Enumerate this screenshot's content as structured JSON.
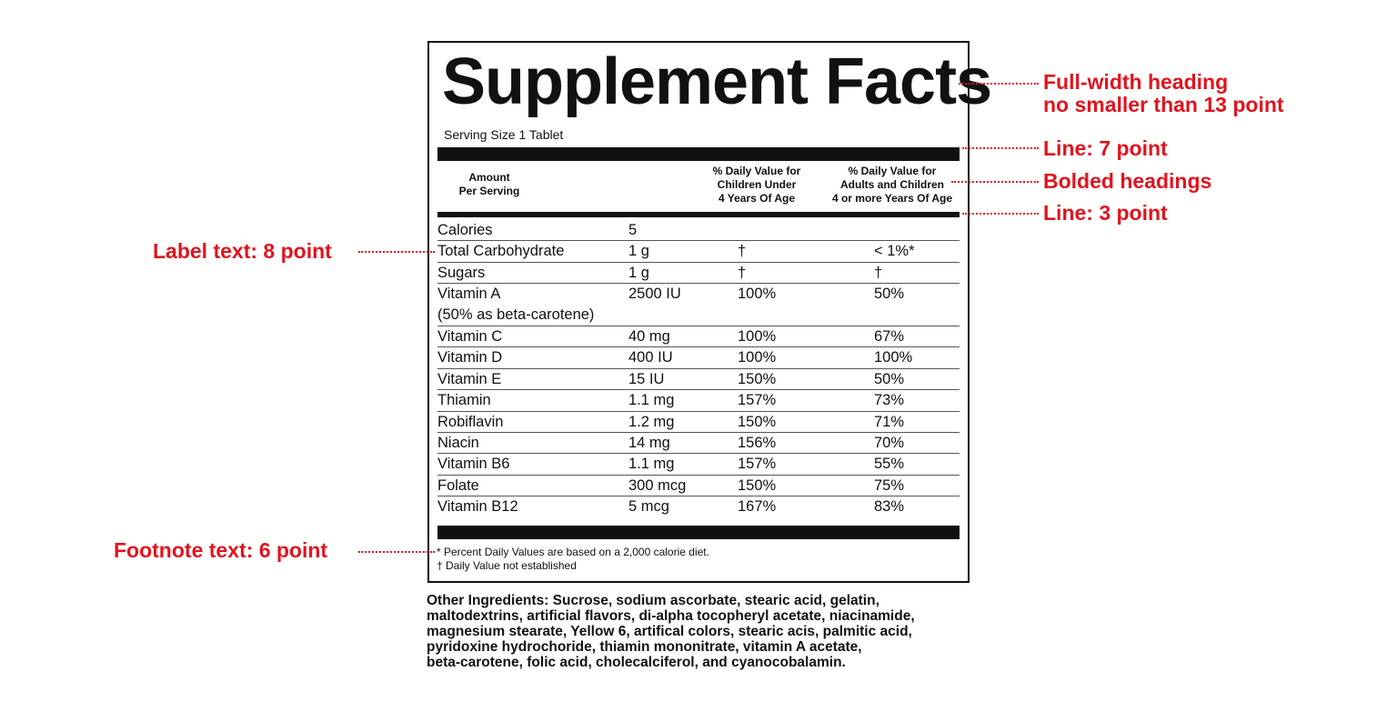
{
  "label": {
    "title": "Supplement Facts",
    "serving_size": "Serving Size 1 Tablet",
    "headers": {
      "amount": [
        "Amount",
        "Per Serving"
      ],
      "children": [
        "% Daily Value for",
        "Children Under",
        "4 Years Of Age"
      ],
      "adults": [
        "% Daily Value for",
        "Adults and Children",
        "4 or more Years Of Age"
      ]
    },
    "rows": [
      {
        "name": "Calories",
        "amount": "5",
        "children": "",
        "adults": ""
      },
      {
        "name": "Total Carbohydrate",
        "amount": "1 g",
        "children": "†",
        "adults": "< 1%*"
      },
      {
        "name": "Sugars",
        "amount": "1 g",
        "children": "†",
        "adults": "†"
      },
      {
        "name": "Vitamin A",
        "sub": "(50% as beta-carotene)",
        "amount": "2500 IU",
        "children": "100%",
        "adults": "50%"
      },
      {
        "name": "Vitamin C",
        "amount": "40 mg",
        "children": "100%",
        "adults": "67%"
      },
      {
        "name": "Vitamin D",
        "amount": "400 IU",
        "children": "100%",
        "adults": "100%"
      },
      {
        "name": "Vitamin E",
        "amount": "15 IU",
        "children": "150%",
        "adults": "50%"
      },
      {
        "name": "Thiamin",
        "amount": "1.1 mg",
        "children": "157%",
        "adults": "73%"
      },
      {
        "name": "Robiflavin",
        "amount": "1.2 mg",
        "children": "150%",
        "adults": "71%"
      },
      {
        "name": "Niacin",
        "amount": "14 mg",
        "children": "156%",
        "adults": "70%"
      },
      {
        "name": "Vitamin B6",
        "amount": "1.1 mg",
        "children": "157%",
        "adults": "55%"
      },
      {
        "name": "Folate",
        "amount": "300 mcg",
        "children": "150%",
        "adults": "75%"
      },
      {
        "name": "Vitamin B12",
        "amount": "5 mcg",
        "children": "167%",
        "adults": "83%"
      }
    ],
    "footnotes": [
      "* Percent Daily Values are based on a 2,000 calorie diet.",
      "† Daily Value not established"
    ]
  },
  "ingredients_lines": [
    "Other Ingredients: Sucrose, sodium ascorbate, stearic acid, gelatin,",
    "maltodextrins, artificial flavors, di-alpha tocopheryl acetate, niacinamide,",
    "magnesium stearate, Yellow 6, artifical colors, stearic acis, palmitic acid,",
    "pyridoxine hydrochoride, thiamin mononitrate, vitamin A acetate,",
    "beta-carotene, folic acid, cholecalciferol, and cyanocobalamin."
  ],
  "annotations": {
    "heading": [
      "Full-width heading",
      "no smaller than 13 point"
    ],
    "line7": "Line: 7 point",
    "bolded": "Bolded headings",
    "line3": "Line: 3 point",
    "label_text": "Label text: 8 point",
    "footnote_text": "Footnote text: 6 point"
  },
  "colors": {
    "annotation": "#e0141e",
    "ink": "#111111"
  }
}
